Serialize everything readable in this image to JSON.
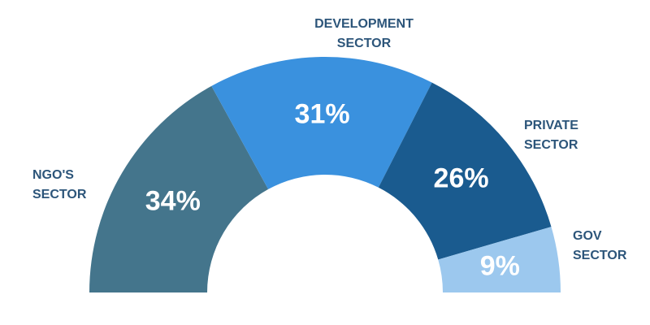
{
  "chart_data": {
    "type": "semi-donut",
    "categories": [
      "NGO'S SECTOR",
      "DEVELOPMENT SECTOR",
      "PRIVATE SECTOR",
      "GOV SECTOR"
    ],
    "values": [
      34,
      31,
      26,
      9
    ],
    "value_labels": [
      "34%",
      "31%",
      "26%",
      "9%"
    ],
    "colors": [
      "#44758c",
      "#3a91de",
      "#1a5b8f",
      "#9cc8ee"
    ]
  }
}
